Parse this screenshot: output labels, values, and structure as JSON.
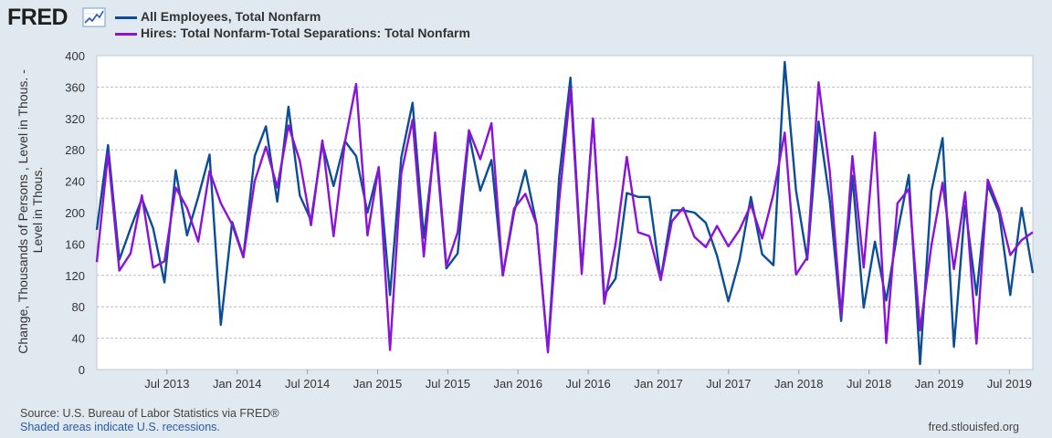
{
  "header": {
    "logo_text": "FRED",
    "legend": [
      {
        "label": "All Employees, Total Nonfarm",
        "color": "#0b4e96"
      },
      {
        "label": "Hires: Total Nonfarm-Total Separations: Total Nonfarm",
        "color": "#8b12d8"
      }
    ]
  },
  "footer": {
    "source": "Source: U.S. Bureau of Labor Statistics via FRED®",
    "shading_note": "Shaded areas indicate U.S. recessions.",
    "site": "fred.stlouisfed.org"
  },
  "chart_data": {
    "type": "line",
    "title": "",
    "xlabel": "",
    "ylabel": "Change, Thousands of Persons , Level in Thous. - Level in Thous.",
    "ylim": [
      0,
      400
    ],
    "yticks": [
      0,
      40,
      80,
      120,
      160,
      200,
      240,
      280,
      320,
      360,
      400
    ],
    "xlim": [
      0,
      80
    ],
    "xticks": [
      {
        "label": "Jul 2013",
        "x": 6
      },
      {
        "label": "Jan 2014",
        "x": 12
      },
      {
        "label": "Jul 2014",
        "x": 18
      },
      {
        "label": "Jan 2015",
        "x": 24
      },
      {
        "label": "Jul 2015",
        "x": 30
      },
      {
        "label": "Jan 2016",
        "x": 36
      },
      {
        "label": "Jul 2016",
        "x": 42
      },
      {
        "label": "Jan 2017",
        "x": 48
      },
      {
        "label": "Jul 2017",
        "x": 54
      },
      {
        "label": "Jan 2018",
        "x": 60
      },
      {
        "label": "Jul 2018",
        "x": 66
      },
      {
        "label": "Jan 2019",
        "x": 72
      },
      {
        "label": "Jul 2019",
        "x": 78
      }
    ],
    "grid": true,
    "series": [
      {
        "name": "All Employees, Total Nonfarm",
        "color": "#0b4e96",
        "values": [
          178,
          286,
          140,
          180,
          218,
          180,
          111,
          254,
          171,
          220,
          274,
          57,
          188,
          144,
          272,
          310,
          214,
          335,
          222,
          190,
          288,
          234,
          291,
          272,
          200,
          257,
          95,
          270,
          340,
          168,
          293,
          129,
          148,
          300,
          228,
          267,
          120,
          200,
          254,
          185,
          24,
          245,
          372,
          126,
          318,
          95,
          116,
          225,
          220,
          220,
          115,
          203,
          203,
          200,
          187,
          145,
          87,
          140,
          220,
          147,
          133,
          392,
          228,
          140,
          316,
          215,
          62,
          247,
          79,
          163,
          88,
          175,
          248,
          7,
          227,
          295,
          29,
          209,
          95,
          235,
          200,
          95,
          206,
          123
        ]
      },
      {
        "name": "Hires: Total Nonfarm-Total Separations: Total Nonfarm",
        "color": "#8b12d8",
        "values": [
          137,
          276,
          126,
          148,
          222,
          130,
          138,
          232,
          206,
          163,
          253,
          212,
          185,
          143,
          240,
          284,
          232,
          311,
          266,
          184,
          292,
          170,
          290,
          364,
          171,
          258,
          25,
          250,
          318,
          144,
          302,
          132,
          175,
          305,
          268,
          314,
          120,
          205,
          224,
          185,
          22,
          215,
          358,
          122,
          320,
          84,
          160,
          271,
          175,
          170,
          114,
          189,
          206,
          169,
          156,
          183,
          157,
          178,
          210,
          167,
          224,
          302,
          121,
          143,
          366,
          252,
          69,
          272,
          130,
          302,
          34,
          212,
          230,
          50,
          158,
          238,
          128,
          226,
          33,
          242,
          205,
          146,
          165,
          175
        ]
      }
    ]
  }
}
